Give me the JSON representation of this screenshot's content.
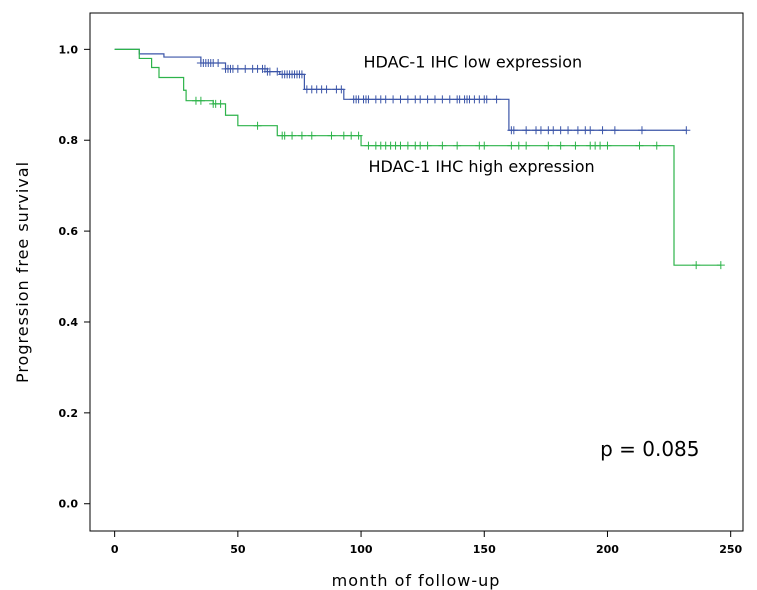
{
  "chart_data": {
    "type": "line",
    "xlabel": "month of follow-up",
    "ylabel": "Progression free survival",
    "xlim": [
      -10,
      255
    ],
    "ylim": [
      -0.06,
      1.08
    ],
    "xticks": [
      0,
      50,
      100,
      150,
      200,
      250
    ],
    "yticks": [
      0.0,
      0.2,
      0.4,
      0.6,
      0.8,
      1.0
    ],
    "ytick_labels": [
      "0.0",
      "0.2",
      "0.4",
      "0.6",
      "0.8",
      "1.0"
    ],
    "grid": false,
    "annotations": [
      {
        "id": "low-label",
        "text": "HDAC-1 IHC low expression",
        "x": 101,
        "y": 0.96
      },
      {
        "id": "high-label",
        "text": "HDAC-1 IHC high expression",
        "x": 103,
        "y": 0.73
      },
      {
        "id": "pvalue",
        "text": "p = 0.085",
        "x": 197,
        "y": 0.105
      }
    ],
    "series": [
      {
        "color": "#3b55a8",
        "steps": [
          [
            0,
            1.0
          ],
          [
            10,
            0.99
          ],
          [
            20,
            0.983
          ],
          [
            35,
            0.97
          ],
          [
            45,
            0.957
          ],
          [
            62,
            0.951
          ],
          [
            67,
            0.945
          ],
          [
            77,
            0.912
          ],
          [
            93,
            0.89
          ],
          [
            160,
            0.822
          ],
          [
            232,
            0.822
          ]
        ],
        "censored": [
          35,
          36,
          37,
          38,
          39,
          40,
          42,
          45,
          46,
          47,
          48,
          50,
          53,
          56,
          58,
          60,
          61,
          62,
          63,
          66,
          68,
          69,
          70,
          71,
          72,
          73,
          74,
          75,
          76,
          78,
          80,
          82,
          84,
          86,
          90,
          92,
          97,
          98,
          99,
          101,
          102,
          103,
          106,
          108,
          110,
          113,
          116,
          119,
          122,
          124,
          127,
          130,
          133,
          136,
          139,
          140,
          142,
          143,
          144,
          146,
          148,
          150,
          151,
          155,
          161,
          162,
          167,
          171,
          173,
          176,
          178,
          181,
          184,
          188,
          191,
          193,
          198,
          203,
          214,
          232
        ]
      },
      {
        "color": "#2db34a",
        "steps": [
          [
            0,
            1.0
          ],
          [
            10,
            0.98
          ],
          [
            15,
            0.96
          ],
          [
            18,
            0.938
          ],
          [
            28,
            0.91
          ],
          [
            29,
            0.887
          ],
          [
            40,
            0.88
          ],
          [
            45,
            0.855
          ],
          [
            50,
            0.832
          ],
          [
            66,
            0.81
          ],
          [
            100,
            0.788
          ],
          [
            227,
            0.525
          ],
          [
            246,
            0.525
          ]
        ],
        "censored": [
          33,
          35,
          40,
          41,
          43,
          58,
          68,
          69,
          72,
          76,
          80,
          88,
          93,
          96,
          99,
          103,
          106,
          108,
          110,
          112,
          114,
          116,
          119,
          122,
          124,
          127,
          133,
          139,
          148,
          150,
          161,
          164,
          167,
          176,
          181,
          187,
          193,
          195,
          197,
          200,
          213,
          220,
          236,
          246
        ]
      }
    ]
  }
}
